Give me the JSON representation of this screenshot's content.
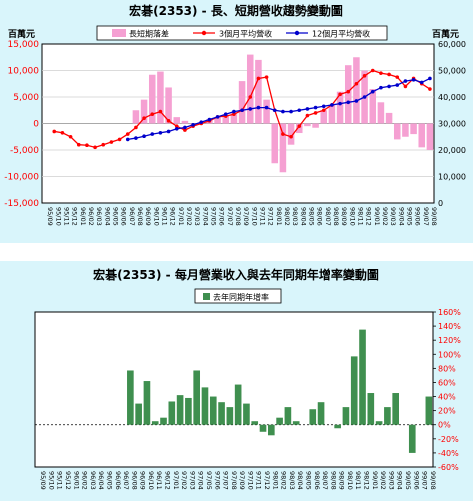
{
  "chart_data": [
    {
      "type": "bar+line",
      "title": "宏碁(2353) - 長、短期營收趨勢變動圖",
      "y_left_label": "百萬元",
      "y_right_label": "百萬元",
      "y_left_ticks": [
        "15,000",
        "10,000",
        "5,000",
        "0",
        "-5,000",
        "-10,000",
        "-15,000"
      ],
      "y_right_ticks": [
        "60,000",
        "50,000",
        "40,000",
        "30,000",
        "20,000",
        "10,000",
        "0"
      ],
      "ylim_left": [
        -15000,
        15000
      ],
      "ylim_right": [
        0,
        60000
      ],
      "categories": [
        "95/09",
        "95/10",
        "95/11",
        "95/12",
        "96/01",
        "96/02",
        "96/03",
        "96/04",
        "96/05",
        "96/06",
        "96/07",
        "96/08",
        "96/09",
        "96/10",
        "96/11",
        "96/12",
        "97/01",
        "97/02",
        "97/03",
        "97/04",
        "97/05",
        "97/06",
        "97/07",
        "97/08",
        "97/09",
        "97/10",
        "97/11",
        "97/12",
        "98/01",
        "98/02",
        "98/03",
        "98/04",
        "98/05",
        "98/06",
        "98/07",
        "98/08",
        "98/09",
        "98/10",
        "98/11",
        "98/12",
        "99/01",
        "99/02",
        "99/03",
        "99/04",
        "99/05",
        "99/06",
        "99/07",
        "99/08"
      ],
      "series": [
        {
          "name": "長短期落差",
          "kind": "bar",
          "color": "#f5a0d2",
          "values": [
            null,
            null,
            null,
            null,
            null,
            null,
            null,
            null,
            null,
            null,
            null,
            2500,
            4500,
            9200,
            9800,
            6800,
            1200,
            500,
            -200,
            100,
            800,
            1200,
            1500,
            2000,
            8000,
            13000,
            12000,
            4500,
            -7500,
            -9200,
            -4000,
            -1800,
            -500,
            -800,
            2500,
            3500,
            6000,
            11000,
            12500,
            10000,
            6500,
            4000,
            2000,
            -3000,
            -2500,
            -2000,
            -4500,
            -5000
          ]
        },
        {
          "name": "3個月平均營收",
          "kind": "line",
          "color": "#ff0000",
          "values": [
            null,
            27000,
            26500,
            25000,
            22000,
            21800,
            21000,
            22000,
            23000,
            24000,
            26000,
            28500,
            32000,
            33500,
            34500,
            31000,
            29000,
            27500,
            29000,
            30000,
            31000,
            32500,
            32800,
            33500,
            35000,
            40000,
            47000,
            47500,
            35000,
            26000,
            25000,
            29000,
            33000,
            34000,
            35000,
            37000,
            41000,
            42000,
            45000,
            48000,
            50000,
            49000,
            48500,
            47500,
            44000,
            47000,
            45000,
            43000
          ]
        },
        {
          "name": "12個月平均營收",
          "kind": "line",
          "color": "#0000cc",
          "values": [
            null,
            null,
            null,
            null,
            null,
            null,
            null,
            null,
            null,
            null,
            24000,
            24500,
            25200,
            26000,
            26500,
            27000,
            28000,
            28500,
            29500,
            30500,
            31500,
            32500,
            33500,
            34500,
            35000,
            35500,
            36000,
            36000,
            35000,
            34500,
            34500,
            35000,
            35500,
            36000,
            36500,
            37000,
            37500,
            38000,
            38500,
            40000,
            42000,
            43500,
            44000,
            44500,
            46000,
            46500,
            45500,
            47000
          ]
        }
      ],
      "legend": "top"
    },
    {
      "type": "bar",
      "title": "宏碁(2353) - 每月營業收入與去年同期年增率變動圖",
      "legend_entry": "去年同期年增率",
      "y_ticks": [
        "160%",
        "140%",
        "120%",
        "100%",
        "80%",
        "60%",
        "40%",
        "20%",
        "0%",
        "-20%",
        "-40%",
        "-60%"
      ],
      "ylim": [
        -60,
        160
      ],
      "categories": [
        "95/09",
        "95/10",
        "95/11",
        "95/12",
        "96/01",
        "96/02",
        "96/03",
        "96/04",
        "96/05",
        "96/06",
        "96/07",
        "96/08",
        "96/09",
        "96/10",
        "96/11",
        "96/12",
        "97/01",
        "97/02",
        "97/03",
        "97/04",
        "97/05",
        "97/06",
        "97/07",
        "97/08",
        "97/09",
        "97/10",
        "97/11",
        "97/12",
        "98/01",
        "98/02",
        "98/03",
        "98/04",
        "98/05",
        "98/06",
        "98/07",
        "98/08",
        "98/09",
        "98/10",
        "98/11",
        "98/12",
        "99/01",
        "99/02",
        "99/03",
        "99/04",
        "99/05",
        "99/06",
        "99/07",
        "99/08"
      ],
      "values": [
        0,
        0,
        0,
        0,
        0,
        0,
        0,
        0,
        0,
        0,
        0,
        77,
        30,
        62,
        5,
        10,
        33,
        42,
        38,
        77,
        53,
        40,
        32,
        25,
        57,
        30,
        5,
        -10,
        -15,
        10,
        25,
        5,
        0,
        22,
        32,
        0,
        -5,
        25,
        97,
        135,
        45,
        5,
        25,
        45,
        0,
        -40,
        0,
        40
      ],
      "color": "#3f8f4f"
    }
  ]
}
